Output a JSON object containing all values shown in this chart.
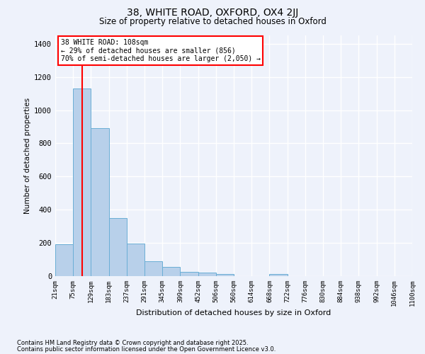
{
  "title1": "38, WHITE ROAD, OXFORD, OX4 2JJ",
  "title2": "Size of property relative to detached houses in Oxford",
  "xlabel": "Distribution of detached houses by size in Oxford",
  "ylabel": "Number of detached properties",
  "bin_labels": [
    "21sqm",
    "75sqm",
    "129sqm",
    "183sqm",
    "237sqm",
    "291sqm",
    "345sqm",
    "399sqm",
    "452sqm",
    "506sqm",
    "560sqm",
    "614sqm",
    "668sqm",
    "722sqm",
    "776sqm",
    "830sqm",
    "884sqm",
    "938sqm",
    "992sqm",
    "1046sqm",
    "1100sqm"
  ],
  "bar_values": [
    190,
    1130,
    890,
    350,
    195,
    90,
    55,
    25,
    20,
    12,
    0,
    0,
    12,
    0,
    0,
    0,
    0,
    0,
    0,
    0
  ],
  "bar_color": "#b8d0ea",
  "bar_edge_color": "#6aaed6",
  "red_line_x": 1.5,
  "annotation_box_text": "38 WHITE ROAD: 108sqm\n← 29% of detached houses are smaller (856)\n70% of semi-detached houses are larger (2,050) →",
  "footnote1": "Contains HM Land Registry data © Crown copyright and database right 2025.",
  "footnote2": "Contains public sector information licensed under the Open Government Licence v3.0.",
  "bg_color": "#eef2fb",
  "grid_color": "#ffffff",
  "ylim": [
    0,
    1450
  ],
  "yticks": [
    0,
    200,
    400,
    600,
    800,
    1000,
    1200,
    1400
  ]
}
